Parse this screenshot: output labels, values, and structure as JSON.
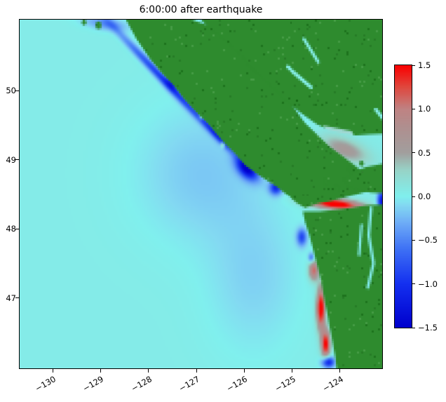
{
  "figure": {
    "background": "#ffffff"
  },
  "chart_data": {
    "type": "heatmap",
    "title": "6:00:00 after earthquake",
    "xlabel": "",
    "ylabel": "",
    "x_ticks": [
      {
        "value": -130,
        "label": "−130"
      },
      {
        "value": -129,
        "label": "−129"
      },
      {
        "value": -128,
        "label": "−128"
      },
      {
        "value": -127,
        "label": "−127"
      },
      {
        "value": -126,
        "label": "−126"
      },
      {
        "value": -125,
        "label": "−125"
      },
      {
        "value": -124,
        "label": "−124"
      }
    ],
    "y_ticks": [
      {
        "value": 50,
        "label": "50"
      },
      {
        "value": 49,
        "label": "49"
      },
      {
        "value": 48,
        "label": "48"
      },
      {
        "value": 47,
        "label": "47"
      }
    ],
    "extent": {
      "lon_min": -130.69,
      "lon_max": -123.12,
      "lat_min": 45.98,
      "lat_max": 51.03
    },
    "colorbar": {
      "vmin": -1.5,
      "vmax": 1.5,
      "ticks": [
        {
          "value": 1.5,
          "label": "1.5"
        },
        {
          "value": 1.0,
          "label": "1.0"
        },
        {
          "value": 0.5,
          "label": "0.5"
        },
        {
          "value": 0.0,
          "label": "0.0"
        },
        {
          "value": -0.5,
          "label": "−0.5"
        },
        {
          "value": -1.0,
          "label": "−1.0"
        },
        {
          "value": -1.5,
          "label": "−1.5"
        }
      ]
    },
    "colormap": [
      [
        -1.5,
        "#0000cd"
      ],
      [
        -1.0,
        "#1430f0"
      ],
      [
        -0.6,
        "#3f72f5"
      ],
      [
        -0.3,
        "#6fadf7"
      ],
      [
        -0.1,
        "#83d9f2"
      ],
      [
        0.0,
        "#80f0ee"
      ],
      [
        0.3,
        "#98d4c8"
      ],
      [
        0.5,
        "#a29f9e"
      ],
      [
        0.8,
        "#b08f8f"
      ],
      [
        1.0,
        "#c08383"
      ],
      [
        1.25,
        "#e0483f"
      ],
      [
        1.5,
        "#fb0000"
      ]
    ],
    "land": {
      "color": "#2e8b2e",
      "speckle_colors": [
        "#1f6f1f",
        "#57a857",
        "#0f5f0f"
      ],
      "polygons": [
        [
          [
            -128.49,
            51.06
          ],
          [
            -128.25,
            50.76
          ],
          [
            -127.95,
            50.45
          ],
          [
            -127.7,
            50.25
          ],
          [
            -127.47,
            50.08
          ],
          [
            -127.26,
            49.89
          ],
          [
            -127.0,
            49.69
          ],
          [
            -126.77,
            49.54
          ],
          [
            -126.59,
            49.39
          ],
          [
            -126.39,
            49.23
          ],
          [
            -126.18,
            49.08
          ],
          [
            -125.98,
            48.92
          ],
          [
            -125.74,
            48.8
          ],
          [
            -125.54,
            48.71
          ],
          [
            -125.32,
            48.61
          ],
          [
            -125.1,
            48.49
          ],
          [
            -124.89,
            48.37
          ],
          [
            -124.72,
            48.3
          ],
          [
            -124.48,
            48.36
          ],
          [
            -124.19,
            48.4
          ],
          [
            -123.9,
            48.45
          ],
          [
            -123.6,
            48.51
          ],
          [
            -123.37,
            48.56
          ],
          [
            -123.19,
            48.61
          ],
          [
            -123.43,
            48.78
          ],
          [
            -123.69,
            48.92
          ],
          [
            -123.95,
            49.06
          ],
          [
            -124.22,
            49.2
          ],
          [
            -124.48,
            49.37
          ],
          [
            -124.72,
            49.53
          ],
          [
            -124.89,
            49.69
          ],
          [
            -125.04,
            49.85
          ],
          [
            -125.19,
            50.02
          ],
          [
            -125.33,
            50.18
          ],
          [
            -125.51,
            50.34
          ],
          [
            -125.71,
            50.5
          ],
          [
            -125.95,
            50.66
          ],
          [
            -126.27,
            50.83
          ],
          [
            -126.59,
            50.91
          ],
          [
            -126.88,
            50.98
          ],
          [
            -127.22,
            51.06
          ]
        ],
        [
          [
            -126.97,
            51.08
          ],
          [
            -126.77,
            50.93
          ],
          [
            -126.53,
            50.81
          ],
          [
            -126.27,
            50.64
          ],
          [
            -126.03,
            50.48
          ],
          [
            -125.86,
            50.33
          ],
          [
            -125.65,
            50.2
          ],
          [
            -125.45,
            50.07
          ],
          [
            -125.24,
            49.93
          ],
          [
            -125.01,
            49.79
          ],
          [
            -124.77,
            49.66
          ],
          [
            -124.51,
            49.53
          ],
          [
            -124.25,
            49.44
          ],
          [
            -123.95,
            49.39
          ],
          [
            -123.66,
            49.36
          ],
          [
            -123.37,
            49.37
          ],
          [
            -123.0,
            49.38
          ],
          [
            -123.0,
            51.08
          ]
        ],
        [
          [
            -123.0,
            48.96
          ],
          [
            -123.45,
            48.9
          ],
          [
            -123.75,
            48.82
          ],
          [
            -123.92,
            48.72
          ],
          [
            -123.82,
            48.62
          ],
          [
            -123.6,
            48.56
          ],
          [
            -123.34,
            48.53
          ],
          [
            -123.0,
            48.52
          ]
        ],
        [
          [
            -124.77,
            48.25
          ],
          [
            -124.72,
            48.09
          ],
          [
            -124.64,
            47.92
          ],
          [
            -124.57,
            47.74
          ],
          [
            -124.51,
            47.58
          ],
          [
            -124.45,
            47.42
          ],
          [
            -124.39,
            47.25
          ],
          [
            -124.35,
            47.09
          ],
          [
            -124.31,
            46.93
          ],
          [
            -124.26,
            46.77
          ],
          [
            -124.22,
            46.6
          ],
          [
            -124.17,
            46.44
          ],
          [
            -124.13,
            46.28
          ],
          [
            -124.09,
            46.12
          ],
          [
            -124.06,
            45.93
          ],
          [
            -123.0,
            45.93
          ],
          [
            -123.0,
            48.35
          ],
          [
            -123.43,
            48.34
          ],
          [
            -123.75,
            48.3
          ],
          [
            -124.1,
            48.27
          ],
          [
            -124.42,
            48.25
          ]
        ]
      ],
      "islands": [
        [
          -124.29,
          48.68,
          0.05
        ],
        [
          -124.05,
          48.6,
          0.04
        ],
        [
          -129.05,
          50.95,
          0.06
        ],
        [
          -129.35,
          50.99,
          0.04
        ],
        [
          -123.55,
          48.95,
          0.04
        ],
        [
          -123.8,
          48.87,
          0.035
        ]
      ],
      "inland_water_strokes": [
        {
          "pts": [
            [
              -125.1,
              50.35
            ],
            [
              -124.6,
              50.05
            ]
          ],
          "w": 0.07,
          "color": "#86efe9"
        },
        {
          "pts": [
            [
              -124.75,
              50.75
            ],
            [
              -124.45,
              50.42
            ]
          ],
          "w": 0.06,
          "color": "#86efe9"
        },
        {
          "pts": [
            [
              -123.35,
              48.3
            ],
            [
              -123.4,
              47.9
            ],
            [
              -123.3,
              47.5
            ],
            [
              -123.42,
              47.15
            ]
          ],
          "w": 0.06,
          "color": "#7fe8e6"
        },
        {
          "pts": [
            [
              -123.55,
              48.05
            ],
            [
              -123.6,
              47.62
            ]
          ],
          "w": 0.05,
          "color": "#7fe8e6"
        },
        {
          "pts": [
            [
              -123.25,
              49.73
            ],
            [
              -123.1,
              49.6
            ]
          ],
          "w": 0.07,
          "color": "#86efe9"
        }
      ],
      "inland_water_fills": [
        {
          "pts": [
            [
              -124.35,
              49.5
            ],
            [
              -123.75,
              49.42
            ],
            [
              -123.7,
              49.32
            ],
            [
              -124.25,
              49.38
            ]
          ],
          "color": "#9fd8d2"
        }
      ]
    },
    "field": {
      "base": 0.05,
      "blobs": [
        [
          -127.6,
          50.1,
          1.3,
          0.07,
          -36,
          -1.0
        ],
        [
          -127.45,
          50.15,
          0.15,
          0.11,
          0,
          -0.9
        ],
        [
          -126.55,
          49.35,
          0.35,
          0.06,
          -36,
          -0.7
        ],
        [
          -125.95,
          48.88,
          0.24,
          0.13,
          -30,
          -1.5
        ],
        [
          -125.34,
          48.6,
          0.13,
          0.1,
          0,
          -1.1
        ],
        [
          -126.9,
          48.8,
          1.3,
          0.95,
          0,
          -0.22
        ],
        [
          -125.8,
          47.3,
          0.95,
          1.05,
          0,
          -0.18
        ],
        [
          -124.1,
          48.36,
          0.55,
          0.075,
          -4,
          1.7
        ],
        [
          -123.13,
          48.4,
          0.09,
          0.16,
          0,
          -1.3
        ],
        [
          -124.55,
          47.4,
          0.1,
          0.14,
          0,
          1.1
        ],
        [
          -124.4,
          46.85,
          0.09,
          0.3,
          0,
          1.6
        ],
        [
          -124.3,
          46.33,
          0.09,
          0.2,
          0,
          1.5
        ],
        [
          -124.8,
          47.88,
          0.1,
          0.12,
          0,
          -0.9
        ],
        [
          -124.25,
          46.07,
          0.13,
          0.08,
          0,
          -1.3
        ],
        [
          -124.6,
          47.58,
          0.06,
          0.07,
          0,
          -0.7
        ],
        [
          -123.9,
          49.15,
          0.5,
          0.16,
          -14,
          0.55
        ],
        [
          -126.45,
          49.22,
          0.04,
          0.04,
          0,
          0.9
        ],
        [
          -126.9,
          49.63,
          0.04,
          0.04,
          0,
          0.8
        ],
        [
          -128.9,
          50.97,
          0.45,
          0.09,
          -6,
          -0.5
        ],
        [
          -125.9,
          50.35,
          0.95,
          0.05,
          -33,
          -0.5
        ]
      ]
    }
  }
}
